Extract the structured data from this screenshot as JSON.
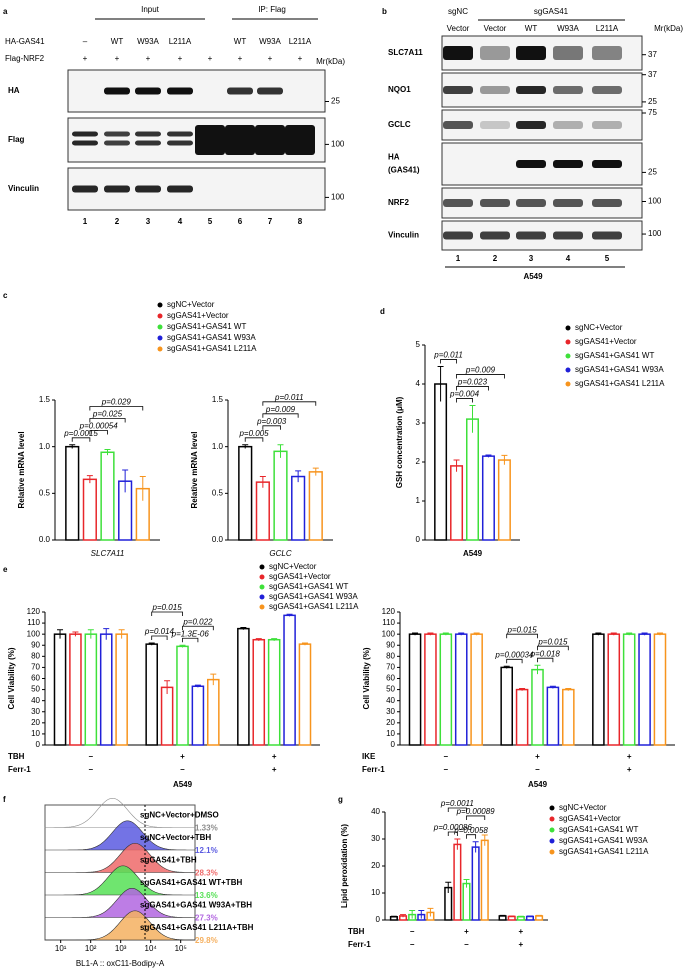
{
  "panel_labels": [
    "a",
    "b",
    "c",
    "d",
    "e",
    "f",
    "g"
  ],
  "blot_a": {
    "groups": [
      "Input",
      "IP: Flag"
    ],
    "treatments": [
      {
        "name": "HA-GAS41",
        "values": [
          "–",
          "WT",
          "W93A",
          "L211A",
          null,
          "WT",
          "W93A",
          "L211A"
        ]
      },
      {
        "name": "Flag-NRF2",
        "values": [
          "+",
          "+",
          "+",
          "+",
          "+",
          "+",
          "+",
          "+"
        ]
      }
    ],
    "mr_label": "Mr(kDa)",
    "rows": [
      {
        "label": [
          "HA"
        ],
        "markers": [
          25
        ]
      },
      {
        "label": [
          "Flag"
        ],
        "markers": [
          100
        ]
      },
      {
        "label": [
          "Vinculin"
        ],
        "markers": [
          100
        ]
      }
    ],
    "lanes": [
      1,
      2,
      3,
      4,
      5,
      6,
      7,
      8
    ]
  },
  "blot_b": {
    "groups": [
      "sgNC",
      "sgGAS41"
    ],
    "lane_labels": [
      "Vector",
      "Vector",
      "WT",
      "W93A",
      "L211A"
    ],
    "mr_label": "Mr(kDa)",
    "rows": [
      {
        "label": [
          "SLC7A11"
        ],
        "markers": [
          37
        ]
      },
      {
        "label": [
          "NQO1"
        ],
        "markers": [
          37,
          25
        ]
      },
      {
        "label": [
          "GCLC"
        ],
        "markers": [
          75
        ]
      },
      {
        "label": [
          "HA",
          "(GAS41)"
        ],
        "markers": [
          25
        ]
      },
      {
        "label": [
          "NRF2"
        ],
        "markers": [
          100
        ]
      },
      {
        "label": [
          "Vinculin"
        ],
        "markers": [
          100
        ]
      }
    ],
    "lanes": [
      1,
      2,
      3,
      4,
      5
    ],
    "cell_line": "A549"
  },
  "chart_data": [
    {
      "type": "bar",
      "y_label": "Relative mRNA level",
      "x_label": "SLC7A11",
      "categories": [
        null
      ],
      "series": [
        {
          "name": "sgNC+Vector",
          "color": "#000000",
          "values": [
            1.0
          ],
          "errors": [
            0.02
          ]
        },
        {
          "name": "sgGAS41+Vector",
          "color": "#e8262a",
          "values": [
            0.65
          ],
          "errors": [
            0.04
          ]
        },
        {
          "name": "sgGAS41+GAS41 WT",
          "color": "#3ee03a",
          "values": [
            0.94
          ],
          "errors": [
            0.03
          ]
        },
        {
          "name": "sgGAS41+GAS41 W93A",
          "color": "#2020d8",
          "values": [
            0.63
          ],
          "errors": [
            0.12
          ]
        },
        {
          "name": "sgGAS41+GAS41 L211A",
          "color": "#f7941d",
          "values": [
            0.55
          ],
          "errors": [
            0.13
          ]
        }
      ],
      "ylim": [
        0,
        1.5
      ],
      "yticks": [
        {
          "value": 0,
          "label": "0.0"
        },
        0.5,
        {
          "value": 1,
          "label": "1.0"
        },
        1.5
      ],
      "annotations": [
        "p=0.0015",
        "p=0.00054",
        "p=0.025",
        "p=0.029"
      ]
    },
    {
      "type": "bar",
      "y_label": "Relative mRNA level",
      "x_label": "GCLC",
      "categories": [
        null
      ],
      "series": [
        {
          "color": "#000000",
          "values": [
            1.0
          ],
          "errors": [
            0.02
          ]
        },
        {
          "color": "#e8262a",
          "values": [
            0.62
          ],
          "errors": [
            0.06
          ]
        },
        {
          "color": "#3ee03a",
          "values": [
            0.95
          ],
          "errors": [
            0.07
          ]
        },
        {
          "color": "#2020d8",
          "values": [
            0.68
          ],
          "errors": [
            0.06
          ]
        },
        {
          "color": "#f7941d",
          "values": [
            0.73
          ],
          "errors": [
            0.04
          ]
        }
      ],
      "ylim": [
        0,
        1.5
      ],
      "yticks": [
        {
          "value": 0,
          "label": "0.0"
        },
        0.5,
        {
          "value": 1,
          "label": "1.0"
        },
        1.5
      ],
      "annotations": [
        "p=0.005",
        "p=0.003",
        "p=0.009",
        "p=0.011"
      ]
    },
    {
      "type": "bar",
      "y_label": "GSH concentration (μM)",
      "x_label": "A549",
      "categories": [
        null
      ],
      "series": [
        {
          "name": "sgNC+Vector",
          "color": "#000000",
          "values": [
            4.0
          ],
          "errors": [
            0.45
          ]
        },
        {
          "name": "sgGAS41+Vector",
          "color": "#e8262a",
          "values": [
            1.9
          ],
          "errors": [
            0.15
          ]
        },
        {
          "name": "sgGAS41+GAS41 WT",
          "color": "#3ee03a",
          "values": [
            3.1
          ],
          "errors": [
            0.35
          ]
        },
        {
          "name": "sgGAS41+GAS41 W93A",
          "color": "#2020d8",
          "values": [
            2.15
          ],
          "errors": [
            0.03
          ]
        },
        {
          "name": "sgGAS41+GAS41 L211A",
          "color": "#f7941d",
          "values": [
            2.05
          ],
          "errors": [
            0.12
          ]
        }
      ],
      "ylim": [
        0,
        5
      ],
      "yticks": [
        0,
        1,
        2,
        3,
        4,
        5
      ],
      "annotations": [
        "p=0.011",
        "p=0.004",
        "p=0.023",
        "p=0.009"
      ]
    },
    {
      "type": "bar",
      "y_label": "Cell Viability (%)",
      "x_label": "A549",
      "categories": [
        null,
        null,
        null
      ],
      "conditions": [
        {
          "name": "TBH",
          "values": [
            "–",
            "+",
            "+"
          ]
        },
        {
          "name": "Ferr-1",
          "values": [
            "–",
            "–",
            "+"
          ]
        }
      ],
      "series": [
        {
          "name": "sgNC+Vector",
          "color": "#000000",
          "values": [
            100,
            91,
            105
          ],
          "errors": [
            4,
            1,
            1
          ]
        },
        {
          "name": "sgGAS41+Vector",
          "color": "#e8262a",
          "values": [
            100,
            52,
            95
          ],
          "errors": [
            2,
            6,
            1
          ]
        },
        {
          "name": "sgGAS41+GAS41 WT",
          "color": "#3ee03a",
          "values": [
            100,
            89,
            95
          ],
          "errors": [
            4,
            1,
            1
          ]
        },
        {
          "name": "sgGAS41+GAS41 W93A",
          "color": "#2020d8",
          "values": [
            100,
            53,
            117
          ],
          "errors": [
            5,
            1,
            1
          ]
        },
        {
          "name": "sgGAS41+GAS41 L211A",
          "color": "#f7941d",
          "values": [
            100,
            59,
            91
          ],
          "errors": [
            4,
            5,
            1
          ]
        }
      ],
      "ylim": [
        0,
        120
      ],
      "yticks": [
        0,
        10,
        20,
        30,
        40,
        50,
        60,
        70,
        80,
        90,
        100,
        110,
        120
      ],
      "annotations": [
        "p=0.015",
        "p=0.014",
        "p=0.022",
        "p=1.3E-06"
      ]
    },
    {
      "type": "bar",
      "y_label": "Cell Viability (%)",
      "x_label": "A549",
      "categories": [
        null,
        null,
        null
      ],
      "conditions": [
        {
          "name": "IKE",
          "values": [
            "–",
            "+",
            "+"
          ]
        },
        {
          "name": "Ferr-1",
          "values": [
            "–",
            "–",
            "+"
          ]
        }
      ],
      "series": [
        {
          "color": "#000000",
          "values": [
            100,
            70,
            100
          ],
          "errors": [
            1,
            1,
            1
          ]
        },
        {
          "color": "#e8262a",
          "values": [
            100,
            50,
            100
          ],
          "errors": [
            1,
            1,
            1
          ]
        },
        {
          "color": "#3ee03a",
          "values": [
            100,
            68,
            100
          ],
          "errors": [
            1,
            4,
            1
          ]
        },
        {
          "color": "#2020d8",
          "values": [
            100,
            52,
            100
          ],
          "errors": [
            1,
            1,
            1
          ]
        },
        {
          "color": "#f7941d",
          "values": [
            100,
            50,
            100
          ],
          "errors": [
            1,
            1,
            1
          ]
        }
      ],
      "ylim": [
        0,
        120
      ],
      "yticks": [
        0,
        10,
        20,
        30,
        40,
        50,
        60,
        70,
        80,
        90,
        100,
        110,
        120
      ],
      "annotations": [
        "p=0.015",
        "p=0.00034",
        "p=0.015",
        "p=0.018"
      ]
    },
    {
      "type": "flow_histogram",
      "x_label": "BL1-A :: oxC11-Bodipy-A",
      "log": true,
      "categories": [
        "sgNC+Vector+DMSO",
        "sgNC+Vector+TBH",
        "sgGAS41+TBH",
        "sgGAS41+GAS41 WT+TBH",
        "sgGAS41+GAS41 W93A+TBH",
        "sgGAS41+GAS41 L211A+TBH"
      ],
      "values": [
        1.33,
        12.1,
        28.3,
        13.6,
        27.3,
        29.8
      ],
      "value_labels": [
        "1.33%",
        "12.1%",
        "28.3%",
        "13.6%",
        "27.3%",
        "29.8%"
      ],
      "colors": [
        "#8c8c8c",
        "#5a5ae0",
        "#ef6a6a",
        "#56e056",
        "#b266e0",
        "#f5b060"
      ],
      "xlim": [
        3,
        300000
      ],
      "xticks": [
        {
          "value": 10,
          "label": "10¹"
        },
        {
          "value": 100,
          "label": "10²"
        },
        {
          "value": 1000,
          "label": "10³"
        },
        {
          "value": 10000,
          "label": "10⁴"
        },
        {
          "value": 100000,
          "label": "10⁵"
        }
      ]
    },
    {
      "type": "bar",
      "y_label": "Lipid peroxidation (%)",
      "categories": [
        null,
        null,
        null
      ],
      "conditions": [
        {
          "name": "TBH",
          "values": [
            "–",
            "+",
            "+"
          ]
        },
        {
          "name": "Ferr-1",
          "values": [
            "–",
            "–",
            "+"
          ]
        }
      ],
      "series": [
        {
          "name": "sgNC+Vector",
          "color": "#000000",
          "values": [
            1.2,
            12,
            1.5
          ],
          "errors": [
            0.2,
            2,
            0.2
          ]
        },
        {
          "name": "sgGAS41+Vector",
          "color": "#e8262a",
          "values": [
            1.5,
            28,
            1.3
          ],
          "errors": [
            0.5,
            2,
            0.2
          ]
        },
        {
          "name": "sgGAS41+GAS41 WT",
          "color": "#3ee03a",
          "values": [
            2,
            13.5,
            1.2
          ],
          "errors": [
            1.5,
            1.5,
            0.2
          ]
        },
        {
          "name": "sgGAS41+GAS41 W93A",
          "color": "#2020d8",
          "values": [
            2,
            27,
            1.3
          ],
          "errors": [
            1.5,
            2,
            0.2
          ]
        },
        {
          "name": "sgGAS41+GAS41 L211A",
          "color": "#f7941d",
          "values": [
            2.8,
            29.5,
            1.5
          ],
          "errors": [
            1.5,
            2,
            0.2
          ]
        }
      ],
      "ylim": [
        0,
        40
      ],
      "yticks": [
        0,
        10,
        20,
        30,
        40
      ],
      "annotations": [
        "p=0.0011",
        "p=0.00086",
        "p=0.00089",
        "p=0.0058"
      ]
    }
  ]
}
